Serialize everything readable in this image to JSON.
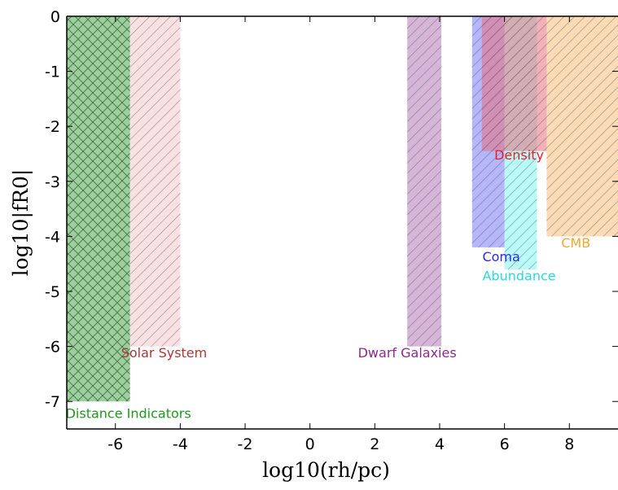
{
  "chart_data": {
    "type": "bar",
    "xlabel": "log10(rh/pc)",
    "ylabel": "log10|fR0|",
    "xlim": [
      -7.5,
      9.5
    ],
    "ylim": [
      -7.5,
      0
    ],
    "x_ticks": [
      -6,
      -4,
      -2,
      0,
      2,
      4,
      6,
      8
    ],
    "x_tick_labels": [
      "-6",
      "-4",
      "-2",
      "0",
      "2",
      "4",
      "6",
      "8"
    ],
    "y_ticks": [
      0,
      -1,
      -2,
      -3,
      -4,
      -5,
      -6,
      -7
    ],
    "y_tick_labels": [
      "0",
      "-1",
      "-2",
      "-3",
      "-4",
      "-5",
      "-6",
      "-7"
    ],
    "regions": [
      {
        "name": "Distance Indicators",
        "x_range": [
          -7.5,
          -5.55
        ],
        "y_range": [
          -7.0,
          0
        ],
        "color": "#4ca64c",
        "hatch": "cross"
      },
      {
        "name": "Solar System",
        "x_range": [
          -5.55,
          -4.0
        ],
        "y_range": [
          -6.0,
          0
        ],
        "color": "#f4c6cc",
        "hatch": "diagonal"
      },
      {
        "name": "Dwarf Galaxies",
        "x_range": [
          3.0,
          4.05
        ],
        "y_range": [
          -6.0,
          0
        ],
        "color": "#b27ab8",
        "hatch": "diagonal"
      },
      {
        "name": "Coma",
        "x_range": [
          5.0,
          6.0
        ],
        "y_range": [
          -4.2,
          0
        ],
        "color": "#7a7af5",
        "hatch": "diagonal"
      },
      {
        "name": "Abundance",
        "x_range": [
          6.0,
          7.0
        ],
        "y_range": [
          -4.6,
          0
        ],
        "color": "#7ff4f0",
        "hatch": "diagonal"
      },
      {
        "name": "CMB",
        "x_range": [
          7.3,
          9.5
        ],
        "y_range": [
          -4.0,
          0
        ],
        "color": "#f5be7a",
        "hatch": "diagonal"
      },
      {
        "name": "Density",
        "x_range": [
          5.3,
          7.3
        ],
        "y_range": [
          -2.45,
          0
        ],
        "color": "#e8707d",
        "hatch": "diagonal"
      }
    ],
    "labels": [
      {
        "text": "Distance Indicators",
        "color": "#1d9a1d",
        "x": -5.6,
        "y": -7.3
      },
      {
        "text": "Solar System",
        "color": "#a8383a",
        "x": -4.5,
        "y": -6.2
      },
      {
        "text": "Dwarf Galaxies",
        "color": "#8c2a8c",
        "x": 3.0,
        "y": -6.2
      },
      {
        "text": "Density",
        "color": "#ec1c24",
        "x": 6.45,
        "y": -2.6
      },
      {
        "text": "Coma",
        "color": "#2a2aee",
        "x": 5.9,
        "y": -4.45
      },
      {
        "text": "Abundance",
        "color": "#29d9e0",
        "x": 6.45,
        "y": -4.8
      },
      {
        "text": "CMB",
        "color": "#f4a636",
        "x": 8.2,
        "y": -4.2
      }
    ],
    "grid": false
  }
}
